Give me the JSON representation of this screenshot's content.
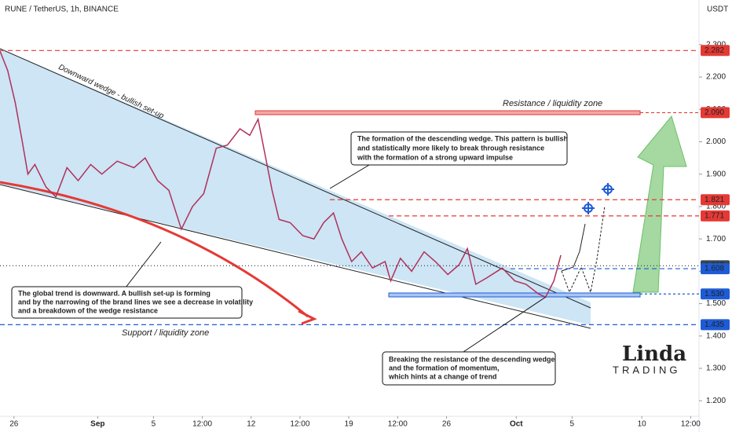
{
  "chart_data": {
    "type": "line",
    "title": "RUNE / TetherUS, 1h, BINANCE",
    "y_axis_label": "USDT",
    "x": [
      -1.0,
      -0.45,
      0.1,
      0.6,
      1.0,
      1.5,
      2.3,
      3.0,
      3.8,
      4.6,
      5.5,
      6.3,
      7.4,
      8.6,
      9.4,
      10.3,
      11.1,
      12.0,
      12.8,
      13.6,
      14.5,
      15.3,
      16.2,
      16.9,
      17.5,
      18.0,
      18.5,
      19.0,
      19.8,
      20.7,
      21.5,
      22.2,
      22.9,
      23.5,
      24.2,
      24.9,
      25.7,
      26.6,
      27.0,
      27.7,
      28.5,
      29.4,
      30.2,
      31.1,
      31.9,
      32.5,
      33.1,
      33.9,
      35.0,
      35.9,
      36.7,
      37.6,
      38.1,
      38.7,
      39.2
    ],
    "series": [
      {
        "name": "RUNE / TetherUS",
        "color": "#b0305a",
        "values": [
          2.28,
          2.22,
          2.12,
          2.0,
          1.9,
          1.93,
          1.86,
          1.83,
          1.92,
          1.88,
          1.93,
          1.9,
          1.94,
          1.92,
          1.95,
          1.88,
          1.85,
          1.73,
          1.8,
          1.84,
          1.98,
          1.99,
          2.04,
          2.02,
          2.07,
          1.96,
          1.85,
          1.76,
          1.75,
          1.71,
          1.7,
          1.75,
          1.78,
          1.7,
          1.63,
          1.66,
          1.61,
          1.63,
          1.57,
          1.64,
          1.6,
          1.66,
          1.63,
          1.59,
          1.62,
          1.67,
          1.56,
          1.58,
          1.61,
          1.57,
          1.56,
          1.53,
          1.52,
          1.57,
          1.65
        ]
      }
    ],
    "xlim": [
      -1.0,
      49.1
    ],
    "ylim": [
      1.152,
      2.438
    ],
    "xticks": [
      {
        "value": 0,
        "label": "26"
      },
      {
        "value": 6,
        "label": "Sep"
      },
      {
        "value": 10,
        "label": "5"
      },
      {
        "value": 13.5,
        "label": "12:00"
      },
      {
        "value": 17,
        "label": "12"
      },
      {
        "value": 20.5,
        "label": "12:00"
      },
      {
        "value": 24,
        "label": "19"
      },
      {
        "value": 27.5,
        "label": "12:00"
      },
      {
        "value": 31,
        "label": "26"
      },
      {
        "value": 36,
        "label": "Oct"
      },
      {
        "value": 40,
        "label": "5"
      },
      {
        "value": 45,
        "label": "10"
      },
      {
        "value": 48.5,
        "label": "12:00"
      }
    ],
    "yticks": [
      {
        "value": 1.2,
        "label": "1.200"
      },
      {
        "value": 1.3,
        "label": "1.300"
      },
      {
        "value": 1.4,
        "label": "1.400"
      },
      {
        "value": 1.5,
        "label": "1.500"
      },
      {
        "value": 1.6,
        "label": "1.600"
      },
      {
        "value": 1.7,
        "label": "1.700"
      },
      {
        "value": 1.8,
        "label": "1.800"
      },
      {
        "value": 1.9,
        "label": "1.900"
      },
      {
        "value": 2.0,
        "label": "2.000"
      },
      {
        "value": 2.1,
        "label": "2.100"
      },
      {
        "value": 2.2,
        "label": "2.200"
      },
      {
        "value": 2.3,
        "label": "2.300"
      }
    ],
    "levels": [
      {
        "value": 2.282,
        "color": "#e53935"
      },
      {
        "value": 2.09,
        "label": "2.090",
        "color": "#e53935"
      },
      {
        "value": 1.821,
        "color": "#e53935"
      },
      {
        "value": 1.771,
        "color": "#e53935"
      },
      {
        "value": 1.617,
        "color": "#37474f"
      },
      {
        "value": 1.608,
        "color": "#1e5bd6"
      },
      {
        "value": 1.53,
        "label": "1.530",
        "color": "#1e5bd6"
      },
      {
        "value": 1.435,
        "color": "#1e5bd6"
      }
    ],
    "annotations": {
      "wedge": "Downward wedge - bullish set-up",
      "resistance": "Resistance / liquidity zone",
      "support": "Support / liquidity zone",
      "box_wedge": [
        "The formation of the descending wedge. This pattern is bullish",
        "and statistically more likely to break through resistance",
        "with the formation of a strong upward impulse"
      ],
      "box_trend": [
        "The global trend is downward. A bullish set-up is forming",
        "and by the narrowing of the brand lines we see a decrease in volatility",
        "and a breakdown of the wedge resistance"
      ],
      "box_break": [
        "Breaking the resistance of the descending wedge",
        "and the formation of momentum,",
        "which hints at a change of trend"
      ]
    },
    "logo": {
      "name": "Linda",
      "sub": "TRADING"
    }
  }
}
